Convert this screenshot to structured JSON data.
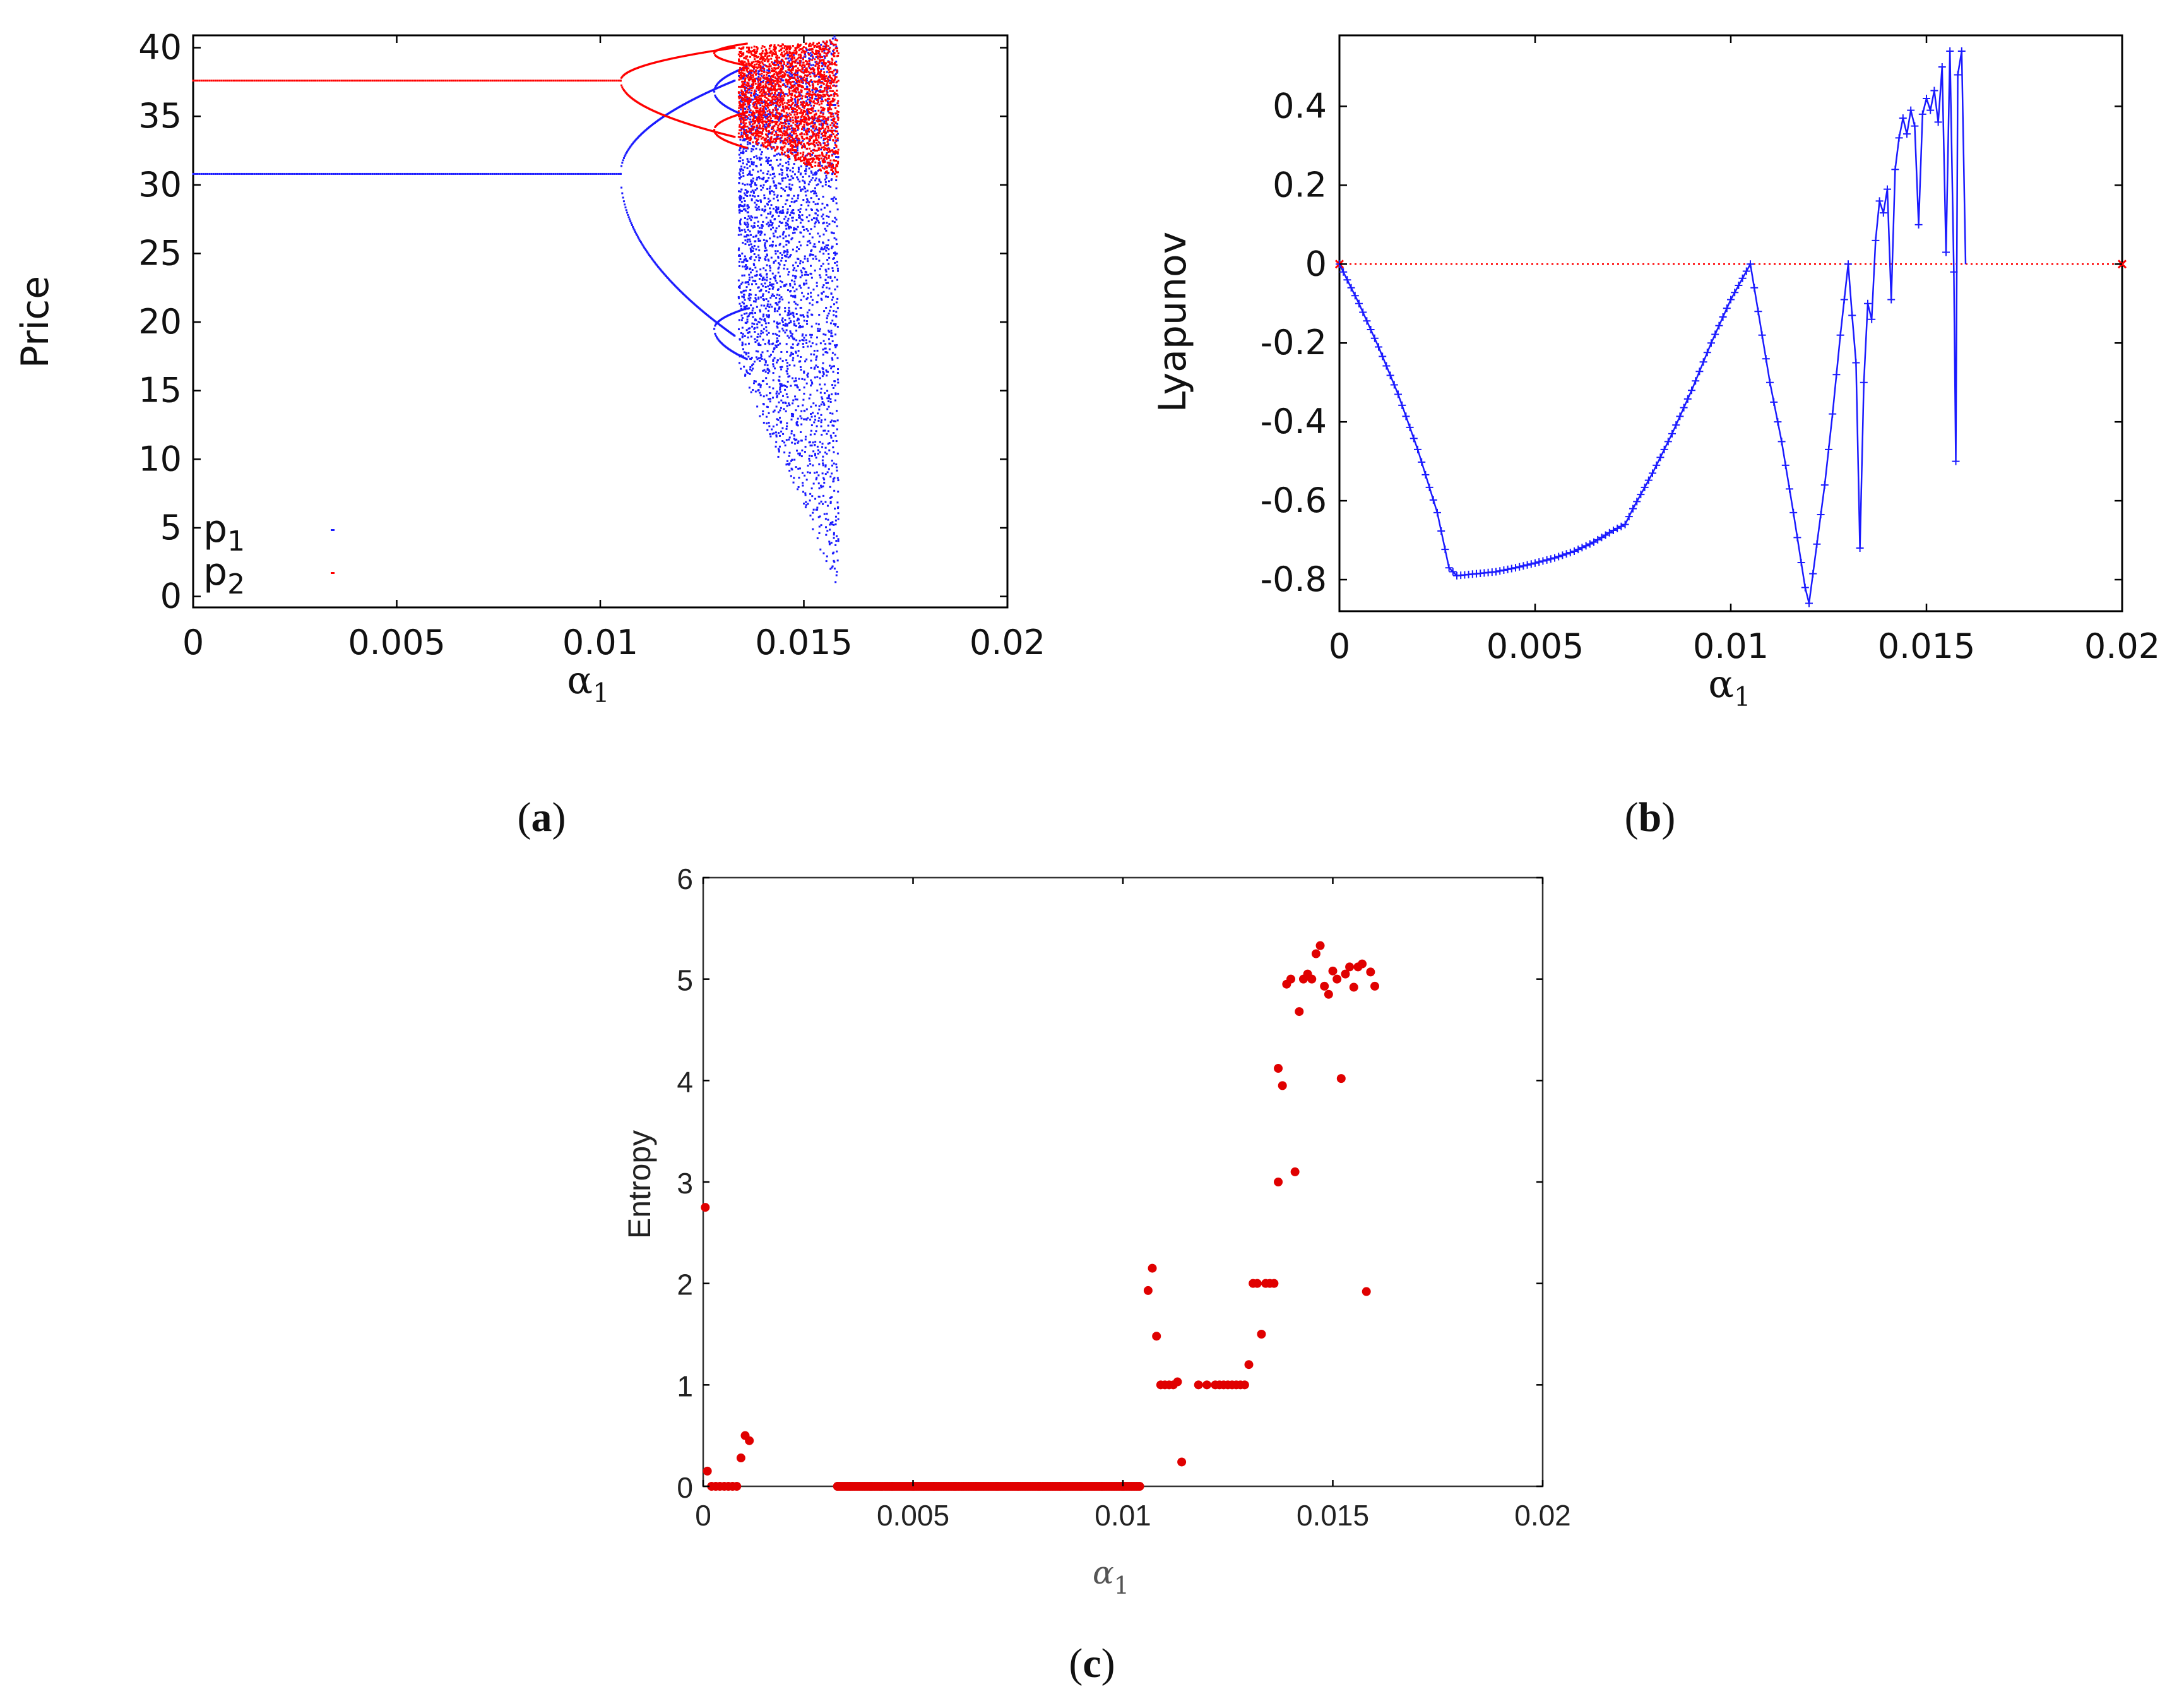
{
  "colors": {
    "blue": "#1a1aff",
    "red": "#ff0000",
    "red_dot": "#e00000"
  },
  "captions": {
    "a": "a",
    "b": "b",
    "c": "c"
  },
  "chart_data": [
    {
      "id": "a",
      "type": "scatter",
      "title": "",
      "xlabel": "α",
      "xlabel_sub": "1",
      "ylabel": "Price",
      "xlim": [
        0,
        0.02
      ],
      "ylim": [
        0,
        41
      ],
      "x_ticks": [
        0,
        0.005,
        0.01,
        0.015,
        0.02
      ],
      "x_tick_labels": [
        "0",
        "0.005",
        "0.01",
        "0.015",
        "0.02"
      ],
      "y_ticks": [
        0,
        5,
        10,
        15,
        20,
        25,
        30,
        35,
        40
      ],
      "y_tick_labels": [
        "0",
        "5",
        "10",
        "15",
        "20",
        "25",
        "30",
        "35",
        "40"
      ],
      "legend": [
        {
          "label": "p",
          "sub": "1",
          "color": "#1a1aff"
        },
        {
          "label": "p",
          "sub": "2",
          "color": "#ff0000"
        }
      ],
      "legend_position": "bottom-left",
      "series": [
        {
          "name": "p1",
          "color": "#1a1aff",
          "description": "bifurcation diagram of price 1",
          "fixed_point": 30.8,
          "bifurcation_x": 0.0105,
          "branches_period2": [
            [
              0.0105,
              30.8,
              30.8
            ],
            [
              0.0117,
              36.6,
              24.0
            ],
            [
              0.0125,
              37.3,
              21.0
            ],
            [
              0.013,
              37.6,
              19.0
            ]
          ],
          "chaos_start_x": 0.0135,
          "chaos_end_x": 0.0158,
          "chaos_range_end": [
            0.5,
            41.0
          ]
        },
        {
          "name": "p2",
          "color": "#ff0000",
          "description": "bifurcation diagram of price 2",
          "fixed_point": 37.6,
          "bifurcation_x": 0.0105,
          "branches_period2": [
            [
              0.0105,
              37.6,
              37.6
            ],
            [
              0.0117,
              39.4,
              34.5
            ],
            [
              0.0125,
              39.8,
              33.7
            ],
            [
              0.013,
              40.0,
              33.5
            ]
          ],
          "chaos_start_x": 0.0135,
          "chaos_end_x": 0.0158,
          "chaos_range_end": [
            30.5,
            40.5
          ]
        }
      ]
    },
    {
      "id": "b",
      "type": "line",
      "title": "",
      "xlabel": "α",
      "xlabel_sub": "1",
      "ylabel": "Lyapunov",
      "xlim": [
        0,
        0.02
      ],
      "ylim": [
        -0.88,
        0.58
      ],
      "x_ticks": [
        0,
        0.005,
        0.01,
        0.015,
        0.02
      ],
      "x_tick_labels": [
        "0",
        "0.005",
        "0.01",
        "0.015",
        "0.02"
      ],
      "y_ticks": [
        -0.8,
        -0.6,
        -0.4,
        -0.2,
        0,
        0.2,
        0.4
      ],
      "y_tick_labels": [
        "-0.8",
        "-0.6",
        "-0.4",
        "-0.2",
        "0",
        "0.2",
        "0.4"
      ],
      "reference_line": {
        "y": 0,
        "color": "#ff0000",
        "style": "dotted"
      },
      "series": [
        {
          "name": "Lyapunov exponent",
          "color": "#1a1aff",
          "points": [
            [
              0,
              0
            ],
            [
              0.0005,
              -0.1
            ],
            [
              0.001,
              -0.21
            ],
            [
              0.0015,
              -0.33
            ],
            [
              0.002,
              -0.47
            ],
            [
              0.0025,
              -0.63
            ],
            [
              0.0028,
              -0.77
            ],
            [
              0.003,
              -0.79
            ],
            [
              0.0035,
              -0.785
            ],
            [
              0.004,
              -0.78
            ],
            [
              0.0045,
              -0.77
            ],
            [
              0.005,
              -0.758
            ],
            [
              0.0055,
              -0.745
            ],
            [
              0.006,
              -0.728
            ],
            [
              0.0065,
              -0.705
            ],
            [
              0.007,
              -0.675
            ],
            [
              0.0073,
              -0.66
            ],
            [
              0.0075,
              -0.62
            ],
            [
              0.008,
              -0.53
            ],
            [
              0.0085,
              -0.43
            ],
            [
              0.009,
              -0.32
            ],
            [
              0.0095,
              -0.2
            ],
            [
              0.01,
              -0.09
            ],
            [
              0.0105,
              0
            ],
            [
              0.011,
              -0.3
            ],
            [
              0.0113,
              -0.45
            ],
            [
              0.0116,
              -0.63
            ],
            [
              0.0119,
              -0.82
            ],
            [
              0.012,
              -0.86
            ],
            [
              0.0122,
              -0.71
            ],
            [
              0.0124,
              -0.56
            ],
            [
              0.0126,
              -0.38
            ],
            [
              0.0128,
              -0.18
            ],
            [
              0.013,
              0
            ],
            [
              0.0131,
              -0.13
            ],
            [
              0.0132,
              -0.25
            ],
            [
              0.0133,
              -0.72
            ],
            [
              0.0134,
              -0.3
            ],
            [
              0.0135,
              -0.1
            ],
            [
              0.0136,
              -0.14
            ],
            [
              0.0137,
              0.06
            ],
            [
              0.0138,
              0.16
            ],
            [
              0.0139,
              0.13
            ],
            [
              0.014,
              0.19
            ],
            [
              0.0141,
              -0.09
            ],
            [
              0.0142,
              0.24
            ],
            [
              0.0143,
              0.32
            ],
            [
              0.0144,
              0.37
            ],
            [
              0.0145,
              0.33
            ],
            [
              0.0146,
              0.39
            ],
            [
              0.0147,
              0.35
            ],
            [
              0.0148,
              0.1
            ],
            [
              0.0149,
              0.38
            ],
            [
              0.015,
              0.42
            ],
            [
              0.0151,
              0.39
            ],
            [
              0.0152,
              0.44
            ],
            [
              0.0153,
              0.36
            ],
            [
              0.0154,
              0.5
            ],
            [
              0.0155,
              0.03
            ],
            [
              0.0156,
              0.54
            ],
            [
              0.0157,
              -0.02
            ],
            [
              0.01575,
              -0.5
            ],
            [
              0.0158,
              0.48
            ],
            [
              0.0159,
              0.54
            ],
            [
              0.016,
              0
            ]
          ]
        }
      ]
    },
    {
      "id": "c",
      "type": "scatter",
      "title": "",
      "xlabel": "α",
      "xlabel_sub": "1",
      "ylabel": "Entropy",
      "xlim": [
        0,
        0.02
      ],
      "ylim": [
        0,
        6
      ],
      "x_ticks": [
        0,
        0.005,
        0.01,
        0.015,
        0.02
      ],
      "x_tick_labels": [
        "0",
        "0.005",
        "0.01",
        "0.015",
        "0.02"
      ],
      "y_ticks": [
        0,
        1,
        2,
        3,
        4,
        5,
        6
      ],
      "y_tick_labels": [
        "0",
        "1",
        "2",
        "3",
        "4",
        "5",
        "6"
      ],
      "series": [
        {
          "name": "Entropy",
          "color": "#e00000",
          "points": [
            [
              5e-05,
              2.75
            ],
            [
              0.0001,
              0.15
            ],
            [
              0.0002,
              0
            ],
            [
              0.0003,
              0
            ],
            [
              0.0004,
              0
            ],
            [
              0.0005,
              0
            ],
            [
              0.0006,
              0
            ],
            [
              0.0007,
              0
            ],
            [
              0.0008,
              0
            ],
            [
              0.0009,
              0.28
            ],
            [
              0.001,
              0.5
            ],
            [
              0.0011,
              0.45
            ],
            [
              0.0032,
              0
            ],
            [
              0.0035,
              0
            ],
            [
              0.004,
              0
            ],
            [
              0.0045,
              0
            ],
            [
              0.005,
              0
            ],
            [
              0.0055,
              0
            ],
            [
              0.006,
              0
            ],
            [
              0.0065,
              0
            ],
            [
              0.007,
              0
            ],
            [
              0.0075,
              0
            ],
            [
              0.008,
              0
            ],
            [
              0.0085,
              0
            ],
            [
              0.009,
              0
            ],
            [
              0.0095,
              0
            ],
            [
              0.01,
              0
            ],
            [
              0.0104,
              0
            ],
            [
              0.0106,
              1.93
            ],
            [
              0.0107,
              2.15
            ],
            [
              0.0108,
              1.48
            ],
            [
              0.0109,
              1.0
            ],
            [
              0.011,
              1.0
            ],
            [
              0.0111,
              1.0
            ],
            [
              0.0112,
              1.0
            ],
            [
              0.0113,
              1.03
            ],
            [
              0.0114,
              0.24
            ],
            [
              0.0118,
              1.0
            ],
            [
              0.012,
              1.0
            ],
            [
              0.0122,
              1.0
            ],
            [
              0.0123,
              1.0
            ],
            [
              0.0124,
              1.0
            ],
            [
              0.0125,
              1.0
            ],
            [
              0.0126,
              1.0
            ],
            [
              0.0127,
              1.0
            ],
            [
              0.0128,
              1.0
            ],
            [
              0.0129,
              1.0
            ],
            [
              0.013,
              1.2
            ],
            [
              0.0131,
              2.0
            ],
            [
              0.0132,
              2.0
            ],
            [
              0.0133,
              1.5
            ],
            [
              0.0134,
              2.0
            ],
            [
              0.0135,
              2.0
            ],
            [
              0.0136,
              2.0
            ],
            [
              0.0137,
              3.0
            ],
            [
              0.0137,
              4.12
            ],
            [
              0.0138,
              3.95
            ],
            [
              0.0139,
              4.95
            ],
            [
              0.014,
              5.0
            ],
            [
              0.0141,
              3.1
            ],
            [
              0.0142,
              4.68
            ],
            [
              0.0143,
              5.0
            ],
            [
              0.0144,
              5.05
            ],
            [
              0.0145,
              5.0
            ],
            [
              0.0146,
              5.25
            ],
            [
              0.0147,
              5.33
            ],
            [
              0.0148,
              4.93
            ],
            [
              0.0149,
              4.85
            ],
            [
              0.015,
              5.08
            ],
            [
              0.0151,
              5.0
            ],
            [
              0.0152,
              4.02
            ],
            [
              0.0153,
              5.05
            ],
            [
              0.0154,
              5.12
            ],
            [
              0.0155,
              4.92
            ],
            [
              0.0156,
              5.12
            ],
            [
              0.0157,
              5.15
            ],
            [
              0.0158,
              1.92
            ],
            [
              0.0159,
              5.07
            ],
            [
              0.016,
              4.93
            ]
          ]
        }
      ]
    }
  ]
}
